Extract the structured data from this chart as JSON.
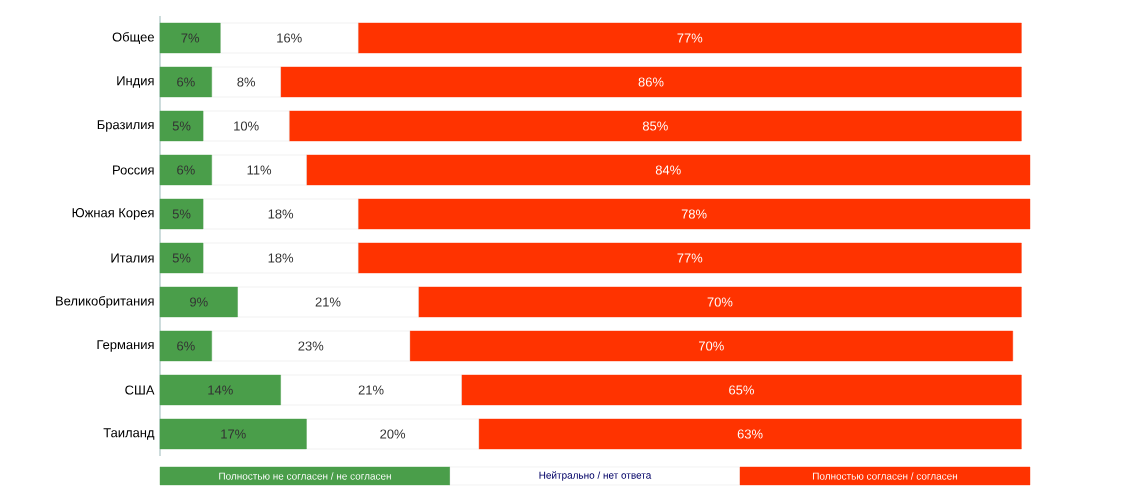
{
  "chart_data": {
    "type": "bar",
    "orientation": "horizontal",
    "stacked": true,
    "legend": "bottom",
    "categories": [
      "Общее",
      "Индия",
      "Бразилия",
      "Россия",
      "Южная Корея",
      "Италия",
      "Великобритания",
      "Германия",
      "США",
      "Таиланд"
    ],
    "series": [
      {
        "name": "Полностью не согласен / не согласен",
        "color": "#4a9e4a",
        "values": [
          7,
          6,
          5,
          6,
          5,
          5,
          9,
          6,
          14,
          17
        ],
        "value_labels": [
          "7%",
          "6%",
          "5%",
          "6%",
          "5%",
          "5%",
          "9%",
          "6%",
          "14%",
          "17%"
        ]
      },
      {
        "name": "Нейтрально / нет ответа",
        "color": "#ffffff",
        "values": [
          16,
          8,
          10,
          11,
          18,
          18,
          21,
          23,
          21,
          20
        ],
        "value_labels": [
          "16%",
          "8%",
          "10%",
          "11%",
          "18%",
          "18%",
          "21%",
          "23%",
          "21%",
          "20%"
        ]
      },
      {
        "name": "Полностью согласен / согласен",
        "color": "#ff3300",
        "values": [
          77,
          86,
          85,
          84,
          78,
          77,
          70,
          70,
          65,
          63
        ],
        "value_labels": [
          "77%",
          "86%",
          "85%",
          "84%",
          "78%",
          "77%",
          "70%",
          "70%",
          "65%",
          "63%"
        ]
      }
    ]
  }
}
